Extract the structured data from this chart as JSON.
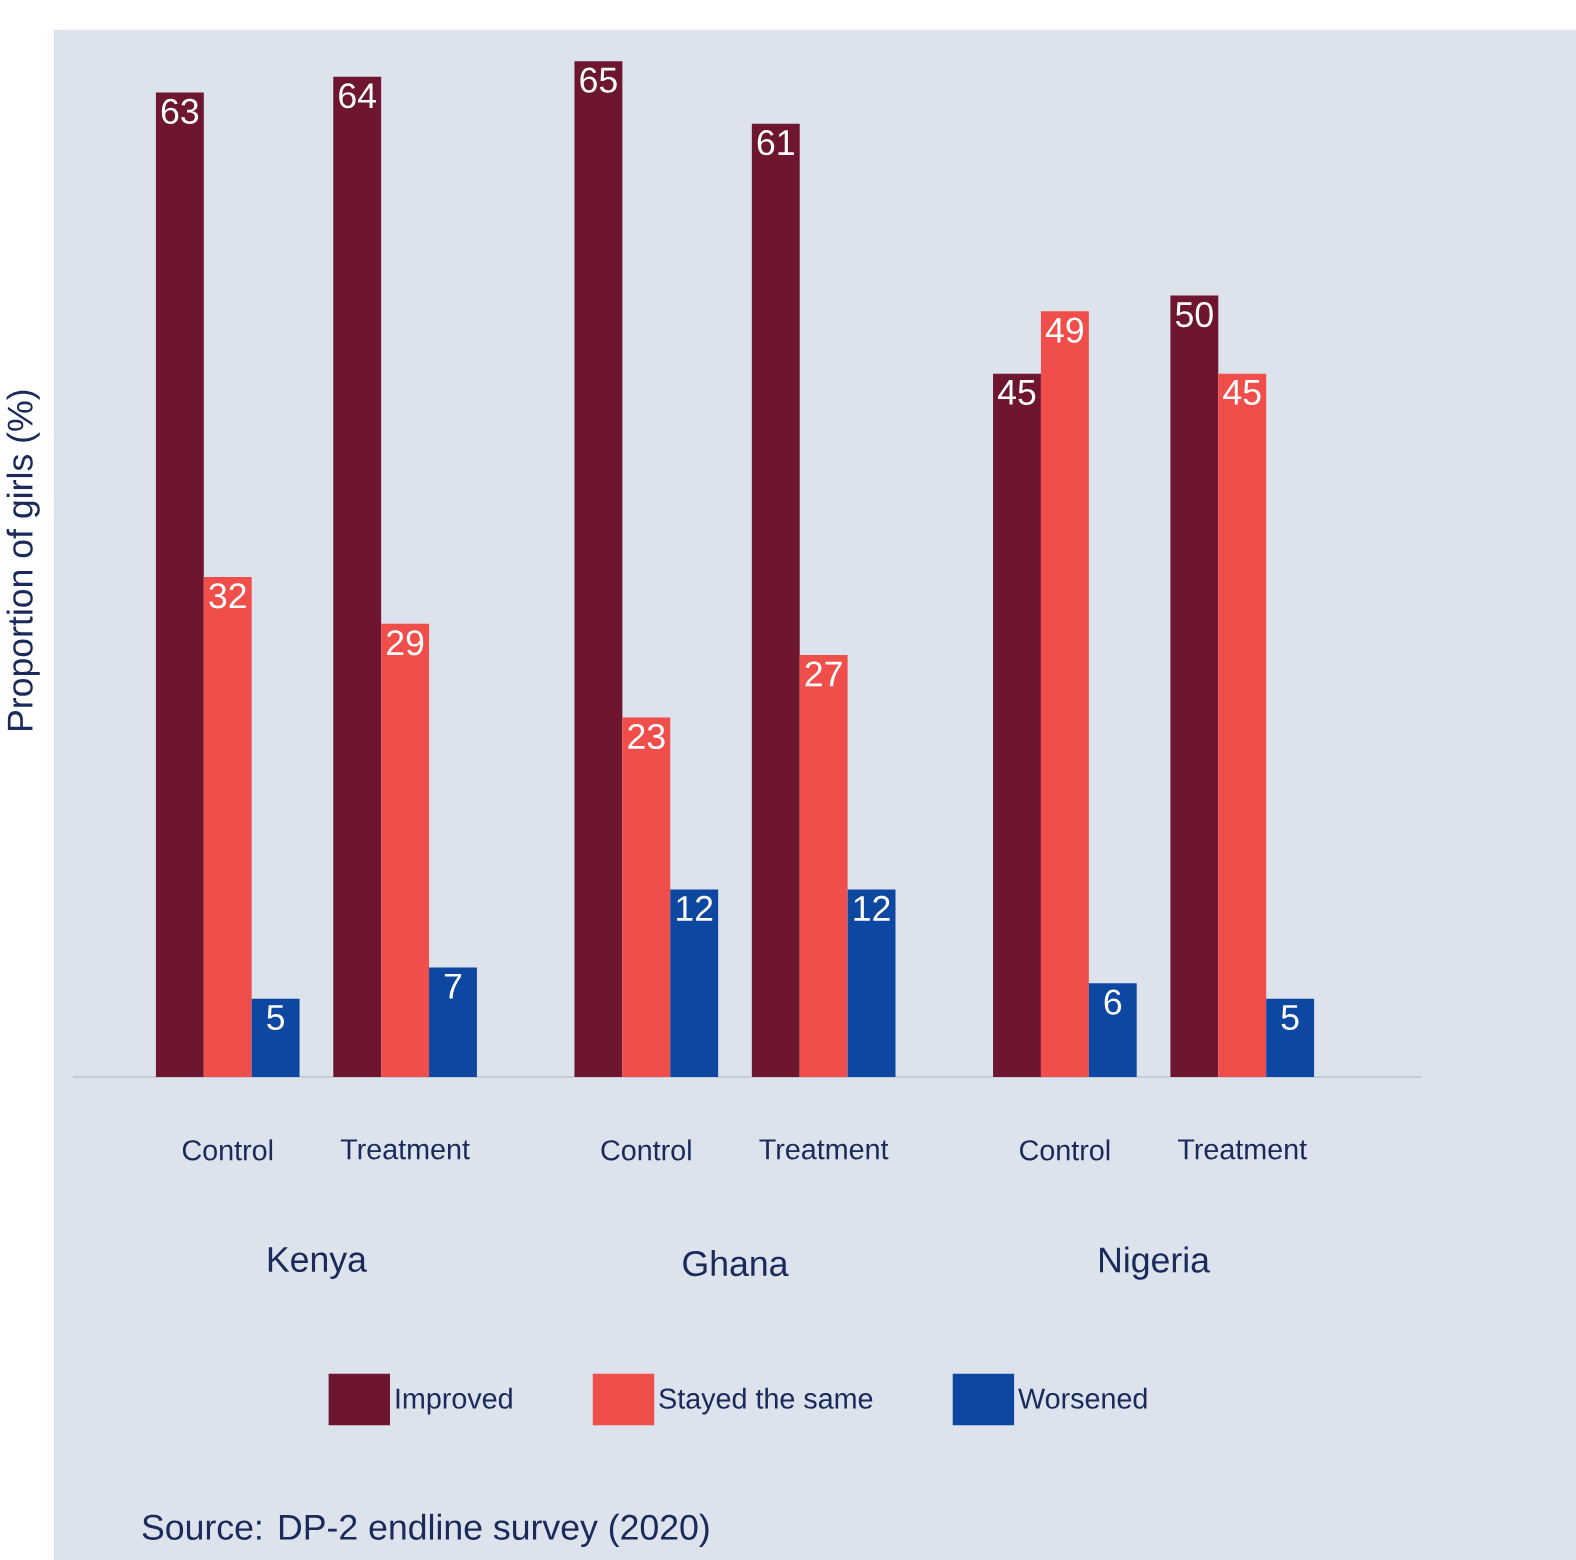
{
  "chart_data": {
    "type": "bar",
    "ylabel": "Proportion of girls (%)",
    "categories": [
      "Control",
      "Treatment",
      "Control",
      "Treatment",
      "Control",
      "Treatment"
    ],
    "series": [
      {
        "name": "Improved",
        "color": "#6e1630",
        "values": [
          63,
          64,
          65,
          61,
          45,
          50
        ]
      },
      {
        "name": "Stayed the same",
        "color": "#f04e4a",
        "values": [
          32,
          29,
          23,
          27,
          49,
          45
        ]
      },
      {
        "name": "Worsened",
        "color": "#0d47a1",
        "values": [
          5,
          7,
          12,
          12,
          6,
          5
        ]
      }
    ],
    "data_labels": true,
    "legend": "bottom",
    "annotations": [
      "Kenya",
      "Ghana",
      "Nigeria",
      "Source: DP-2 endline survey (2020)"
    ]
  }
}
